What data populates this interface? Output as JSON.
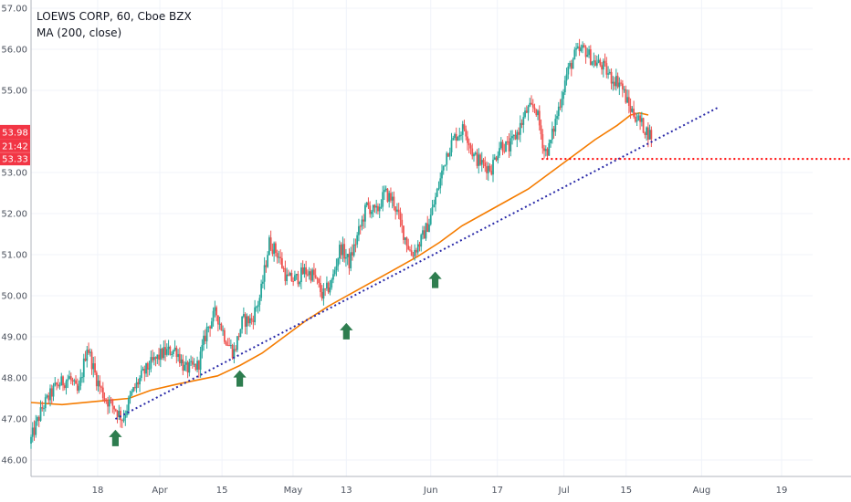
{
  "header": {
    "title": "LOEWS CORP, 60, Cboe BZX",
    "indicator": "MA (200, close)"
  },
  "price_badges": {
    "last_price": "53.98",
    "countdown": "21:42",
    "level_price": "53.33"
  },
  "colors": {
    "up_candle": "#26a69a",
    "down_candle": "#ef5350",
    "ma_line": "#f57c00",
    "trendline": "#2a2aa8",
    "support_line": "#ff0000",
    "arrow": "#2e7d4f",
    "badge_red": "#f23645",
    "grid": "#f0f3fa"
  },
  "chart_data": {
    "type": "candlestick",
    "title": "LOEWS CORP, 60, Cboe BZX",
    "y_axis": {
      "ticks": [
        "46.00",
        "47.00",
        "48.00",
        "49.00",
        "50.00",
        "51.00",
        "52.00",
        "53.00",
        "55.00",
        "56.00",
        "57.00"
      ],
      "range": [
        45.6,
        57.2
      ],
      "position": "right"
    },
    "x_axis": {
      "ticks": [
        {
          "label": "18",
          "day": 18
        },
        {
          "label": "Apr",
          "day": 32
        },
        {
          "label": "15",
          "day": 46
        },
        {
          "label": "May",
          "day": 62
        },
        {
          "label": "13",
          "day": 74
        },
        {
          "label": "Jun",
          "day": 93
        },
        {
          "label": "17",
          "day": 108
        },
        {
          "label": "Jul",
          "day": 123
        },
        {
          "label": "15",
          "day": 137
        },
        {
          "label": "Aug",
          "day": 154
        },
        {
          "label": "19",
          "day": 172
        }
      ],
      "range": [
        3,
        179
      ]
    },
    "price_path": [
      [
        3,
        46.4
      ],
      [
        6,
        47.3
      ],
      [
        9,
        47.8
      ],
      [
        12,
        48.0
      ],
      [
        14,
        47.6
      ],
      [
        16,
        48.8
      ],
      [
        18,
        48.0
      ],
      [
        20,
        47.5
      ],
      [
        22,
        47.3
      ],
      [
        24,
        47.0
      ],
      [
        26,
        47.6
      ],
      [
        28,
        48.0
      ],
      [
        30,
        48.3
      ],
      [
        33,
        48.6
      ],
      [
        36,
        48.7
      ],
      [
        38,
        48.2
      ],
      [
        41,
        48.3
      ],
      [
        43,
        49.2
      ],
      [
        45,
        49.6
      ],
      [
        47,
        49.0
      ],
      [
        49,
        48.6
      ],
      [
        51,
        49.4
      ],
      [
        53,
        49.4
      ],
      [
        55,
        50.0
      ],
      [
        57,
        51.3
      ],
      [
        59,
        51.0
      ],
      [
        61,
        50.4
      ],
      [
        63,
        50.4
      ],
      [
        65,
        50.6
      ],
      [
        67,
        50.5
      ],
      [
        69,
        50.0
      ],
      [
        71,
        50.3
      ],
      [
        73,
        51.2
      ],
      [
        75,
        50.8
      ],
      [
        77,
        51.5
      ],
      [
        79,
        52.2
      ],
      [
        81,
        52.0
      ],
      [
        83,
        52.5
      ],
      [
        85,
        52.3
      ],
      [
        87,
        51.6
      ],
      [
        89,
        51.0
      ],
      [
        91,
        51.3
      ],
      [
        93,
        51.8
      ],
      [
        95,
        52.6
      ],
      [
        97,
        53.5
      ],
      [
        99,
        53.9
      ],
      [
        101,
        54.1
      ],
      [
        103,
        53.4
      ],
      [
        105,
        53.2
      ],
      [
        107,
        53.1
      ],
      [
        109,
        53.7
      ],
      [
        111,
        53.6
      ],
      [
        113,
        54.0
      ],
      [
        115,
        54.5
      ],
      [
        117,
        54.6
      ],
      [
        119,
        53.5
      ],
      [
        120,
        53.6
      ],
      [
        122,
        54.5
      ],
      [
        124,
        55.4
      ],
      [
        126,
        55.9
      ],
      [
        128,
        56.0
      ],
      [
        130,
        55.7
      ],
      [
        132,
        55.6
      ],
      [
        134,
        55.3
      ],
      [
        136,
        55.2
      ],
      [
        138,
        54.6
      ],
      [
        140,
        54.3
      ],
      [
        142,
        54.0
      ],
      [
        143,
        53.9
      ]
    ],
    "ma_200": [
      [
        3,
        47.4
      ],
      [
        10,
        47.35
      ],
      [
        20,
        47.45
      ],
      [
        25,
        47.5
      ],
      [
        30,
        47.7
      ],
      [
        36,
        47.85
      ],
      [
        45,
        48.05
      ],
      [
        50,
        48.3
      ],
      [
        55,
        48.6
      ],
      [
        60,
        49.0
      ],
      [
        65,
        49.4
      ],
      [
        70,
        49.75
      ],
      [
        75,
        50.05
      ],
      [
        80,
        50.35
      ],
      [
        85,
        50.65
      ],
      [
        90,
        50.95
      ],
      [
        95,
        51.3
      ],
      [
        100,
        51.7
      ],
      [
        105,
        52.0
      ],
      [
        110,
        52.3
      ],
      [
        115,
        52.6
      ],
      [
        120,
        53.0
      ],
      [
        125,
        53.4
      ],
      [
        130,
        53.8
      ],
      [
        135,
        54.15
      ],
      [
        138,
        54.4
      ],
      [
        140,
        54.45
      ],
      [
        142,
        54.4
      ]
    ],
    "trendline": {
      "from": [
        22,
        47.0
      ],
      "to": [
        158,
        54.6
      ]
    },
    "support_level": {
      "value": 53.33,
      "from_day": 118
    },
    "arrows": [
      {
        "day": 22,
        "value": 46.75
      },
      {
        "day": 50,
        "value": 48.2
      },
      {
        "day": 74,
        "value": 49.35
      },
      {
        "day": 94,
        "value": 50.6
      }
    ],
    "grid": true,
    "legend": "top-left"
  }
}
